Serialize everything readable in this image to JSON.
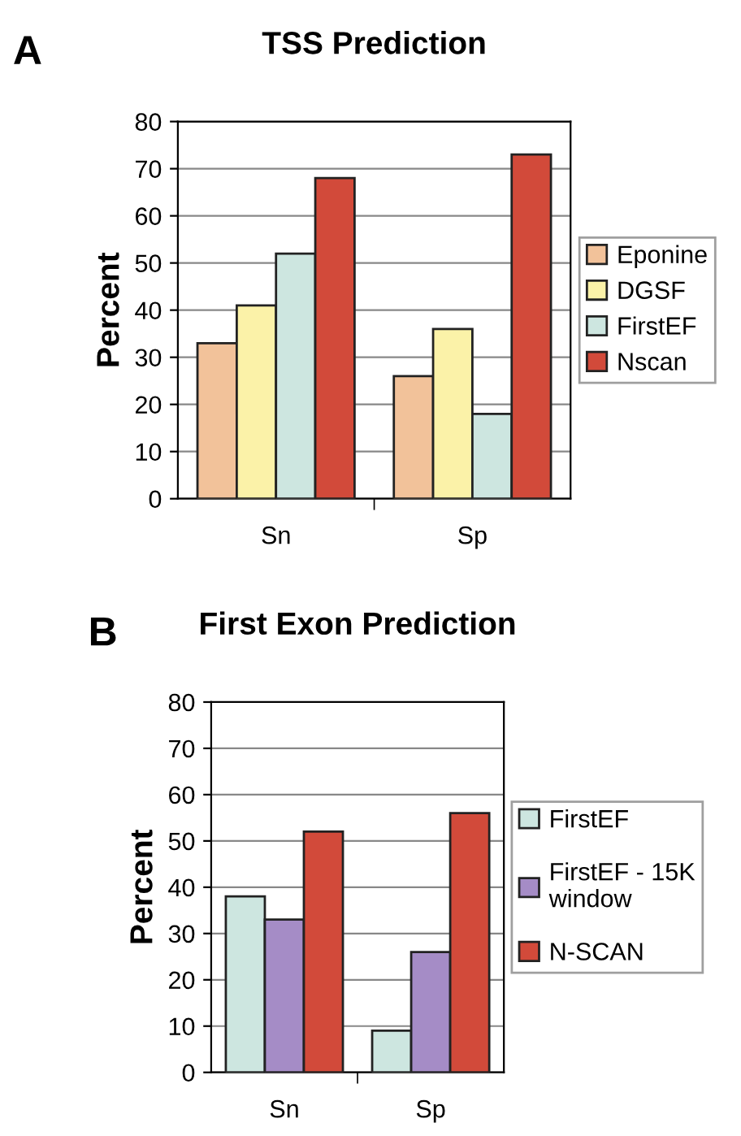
{
  "chart_data": [
    {
      "type": "bar",
      "title": "TSS Prediction",
      "ylabel": "Percent",
      "annotations": [
        "A"
      ],
      "categories": [
        "Sn",
        "Sp"
      ],
      "ylim": [
        0,
        80
      ],
      "yticks": [
        0,
        10,
        20,
        30,
        40,
        50,
        60,
        70,
        80
      ],
      "grid": "y",
      "legend": "right",
      "series": [
        {
          "name": "Eponine",
          "color": "#f2c29a",
          "values": [
            33,
            26
          ]
        },
        {
          "name": "DGSF",
          "color": "#fbf2a8",
          "values": [
            41,
            36
          ]
        },
        {
          "name": "FirstEF",
          "color": "#cde6e0",
          "values": [
            52,
            18
          ]
        },
        {
          "name": "Nscan",
          "color": "#d24a3a",
          "values": [
            68,
            73
          ]
        }
      ]
    },
    {
      "type": "bar",
      "title": "First Exon Prediction",
      "ylabel": "Percent",
      "annotations": [
        "B"
      ],
      "categories": [
        "Sn",
        "Sp"
      ],
      "ylim": [
        0,
        80
      ],
      "yticks": [
        0,
        10,
        20,
        30,
        40,
        50,
        60,
        70,
        80
      ],
      "grid": "y",
      "legend": "right",
      "series": [
        {
          "name": "FirstEF",
          "color": "#cde6e0",
          "values": [
            38,
            9
          ]
        },
        {
          "name": "FirstEF - 15K\nwindow",
          "color": "#a58cc6",
          "values": [
            33,
            26
          ]
        },
        {
          "name": "N-SCAN",
          "color": "#d24a3a",
          "values": [
            52,
            56
          ]
        }
      ]
    }
  ]
}
